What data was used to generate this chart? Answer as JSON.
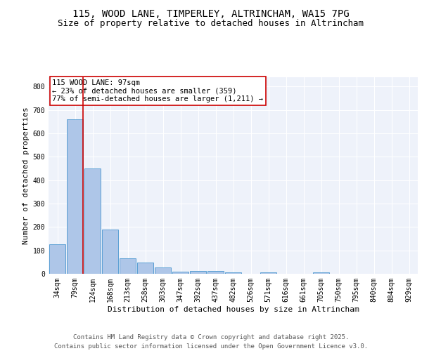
{
  "title1": "115, WOOD LANE, TIMPERLEY, ALTRINCHAM, WA15 7PG",
  "title2": "Size of property relative to detached houses in Altrincham",
  "xlabel": "Distribution of detached houses by size in Altrincham",
  "ylabel": "Number of detached properties",
  "categories": [
    "34sqm",
    "79sqm",
    "124sqm",
    "168sqm",
    "213sqm",
    "258sqm",
    "303sqm",
    "347sqm",
    "392sqm",
    "437sqm",
    "482sqm",
    "526sqm",
    "571sqm",
    "616sqm",
    "661sqm",
    "705sqm",
    "750sqm",
    "795sqm",
    "840sqm",
    "884sqm",
    "929sqm"
  ],
  "values": [
    125,
    660,
    450,
    190,
    65,
    47,
    28,
    10,
    13,
    13,
    6,
    0,
    6,
    0,
    0,
    7,
    0,
    0,
    0,
    0,
    0
  ],
  "bar_color": "#aec6e8",
  "bar_edge_color": "#5a9fd4",
  "vline_color": "#cc0000",
  "annotation_text": "115 WOOD LANE: 97sqm\n← 23% of detached houses are smaller (359)\n77% of semi-detached houses are larger (1,211) →",
  "annotation_box_color": "#ffffff",
  "annotation_box_edge": "#cc0000",
  "ylim": [
    0,
    840
  ],
  "yticks": [
    0,
    100,
    200,
    300,
    400,
    500,
    600,
    700,
    800
  ],
  "footer1": "Contains HM Land Registry data © Crown copyright and database right 2025.",
  "footer2": "Contains public sector information licensed under the Open Government Licence v3.0.",
  "bg_color": "#eef2fa",
  "title_fontsize": 10,
  "subtitle_fontsize": 9,
  "axis_label_fontsize": 8,
  "tick_fontsize": 7,
  "annotation_fontsize": 7.5,
  "footer_fontsize": 6.5
}
